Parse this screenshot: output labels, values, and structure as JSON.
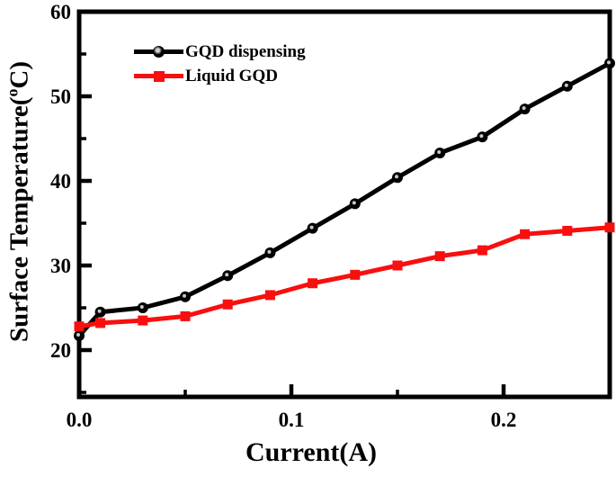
{
  "figure": {
    "background": "#ffffff",
    "text_color": "#000000"
  },
  "chart_data": {
    "type": "line",
    "title": "",
    "xlabel": "Current(A)",
    "ylabel": "Surface Temperature(°C)",
    "ylabel_display": {
      "prefix": "Surface Temperature(",
      "superscript": "o",
      "suffix": "C)"
    },
    "xlim": [
      0,
      0.25
    ],
    "ylim": [
      14.5,
      60
    ],
    "x_ticks_major": [
      0.0,
      0.1,
      0.2
    ],
    "x_tick_labels": [
      "0.0",
      "0.1",
      "0.2"
    ],
    "x_ticks_minor": [
      0.05,
      0.15,
      0.25
    ],
    "y_ticks_major": [
      60,
      50,
      40,
      30,
      20
    ],
    "y_tick_labels": [
      "60",
      "50",
      "40",
      "30",
      "20"
    ],
    "y_ticks_minor": [
      55,
      45,
      35,
      25,
      15
    ],
    "grid": false,
    "legend_position": "top-left-inside",
    "x": [
      0.0,
      0.01,
      0.03,
      0.05,
      0.07,
      0.09,
      0.11,
      0.13,
      0.15,
      0.17,
      0.19,
      0.21,
      0.23,
      0.25
    ],
    "series": [
      {
        "name": "GQD dispensing",
        "color": "#000000",
        "marker": "circle",
        "values": [
          21.7,
          24.5,
          25.0,
          26.3,
          28.8,
          31.5,
          34.4,
          37.3,
          40.4,
          43.3,
          45.2,
          48.5,
          51.2,
          53.9
        ]
      },
      {
        "name": "Liquid GQD",
        "color": "#f80f0f",
        "marker": "square",
        "values": [
          22.8,
          23.2,
          23.5,
          24.0,
          25.4,
          26.5,
          27.9,
          28.9,
          30.0,
          31.1,
          31.8,
          33.7,
          34.1,
          34.5
        ]
      }
    ]
  },
  "legend": {
    "items": [
      {
        "label": "GQD dispensing",
        "color": "#000000",
        "marker": "circle"
      },
      {
        "label": "Liquid GQD",
        "color": "#f80f0f",
        "marker": "square"
      }
    ]
  }
}
